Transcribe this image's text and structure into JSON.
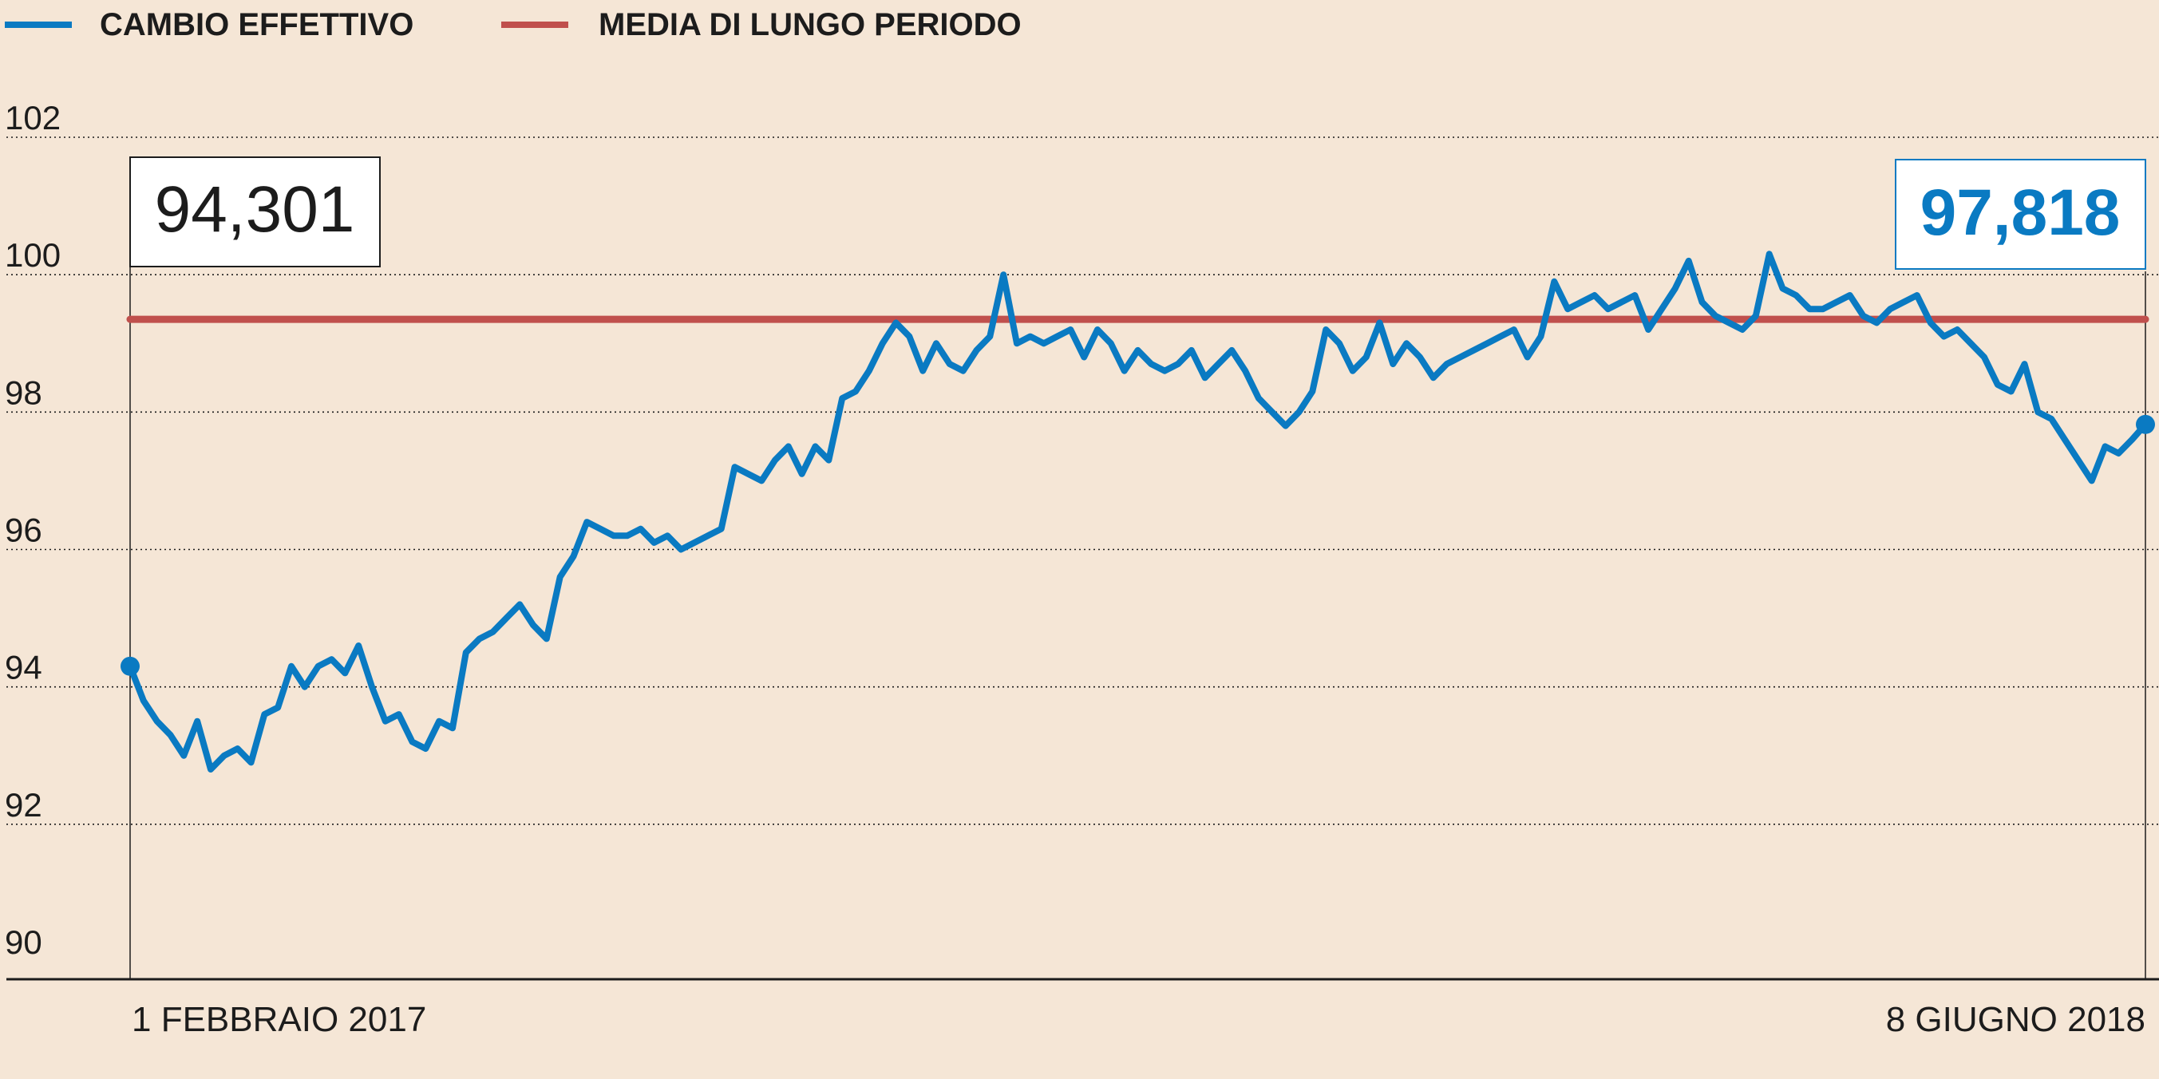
{
  "chart_data": {
    "type": "line",
    "title": "",
    "xlabel": "",
    "ylabel": "",
    "ylim": [
      90,
      102
    ],
    "yticks": [
      "90",
      "92",
      "94",
      "96",
      "98",
      "100",
      "102"
    ],
    "grid": true,
    "legend_placement": "top-left",
    "x_labels": {
      "start": "1 FEBBRAIO 2017",
      "end": "8 GIUGNO 2018"
    },
    "callouts": {
      "start": "94,301",
      "end": "97,818"
    },
    "series": [
      {
        "name": "CAMBIO EFFETTIVO",
        "color": "#0a7ac2",
        "values": [
          94.3,
          93.8,
          93.5,
          93.3,
          93.0,
          93.5,
          92.8,
          93.0,
          93.1,
          92.9,
          93.6,
          93.7,
          94.3,
          94.0,
          94.3,
          94.4,
          94.2,
          94.6,
          94.0,
          93.5,
          93.6,
          93.2,
          93.1,
          93.5,
          93.4,
          94.5,
          94.7,
          94.8,
          95.0,
          95.2,
          94.9,
          94.7,
          95.6,
          95.9,
          96.4,
          96.3,
          96.2,
          96.2,
          96.3,
          96.1,
          96.2,
          96.0,
          96.1,
          96.2,
          96.3,
          97.2,
          97.1,
          97.0,
          97.3,
          97.5,
          97.1,
          97.5,
          97.3,
          98.2,
          98.3,
          98.6,
          99.0,
          99.3,
          99.1,
          98.6,
          99.0,
          98.7,
          98.6,
          98.9,
          99.1,
          100.0,
          99.0,
          99.1,
          99.0,
          99.1,
          99.2,
          98.8,
          99.2,
          99.0,
          98.6,
          98.9,
          98.7,
          98.6,
          98.7,
          98.9,
          98.5,
          98.7,
          98.9,
          98.6,
          98.2,
          98.0,
          97.8,
          98.0,
          98.3,
          99.2,
          99.0,
          98.6,
          98.8,
          99.3,
          98.7,
          99.0,
          98.8,
          98.5,
          98.7,
          98.8,
          98.9,
          99.0,
          99.1,
          99.2,
          98.8,
          99.1,
          99.9,
          99.5,
          99.6,
          99.7,
          99.5,
          99.6,
          99.7,
          99.2,
          99.5,
          99.8,
          100.2,
          99.6,
          99.4,
          99.3,
          99.2,
          99.4,
          100.3,
          99.8,
          99.7,
          99.5,
          99.5,
          99.6,
          99.7,
          99.4,
          99.3,
          99.5,
          99.6,
          99.7,
          99.3,
          99.1,
          99.2,
          99.0,
          98.8,
          98.4,
          98.3,
          98.7,
          98.0,
          97.9,
          97.6,
          97.3,
          97.0,
          97.5,
          97.4,
          97.6,
          97.82
        ],
        "endpoint_dots": true
      },
      {
        "name": "MEDIA DI LUNGO PERIODO",
        "color": "#c0504d",
        "values": [
          99.35,
          99.35
        ]
      }
    ]
  }
}
